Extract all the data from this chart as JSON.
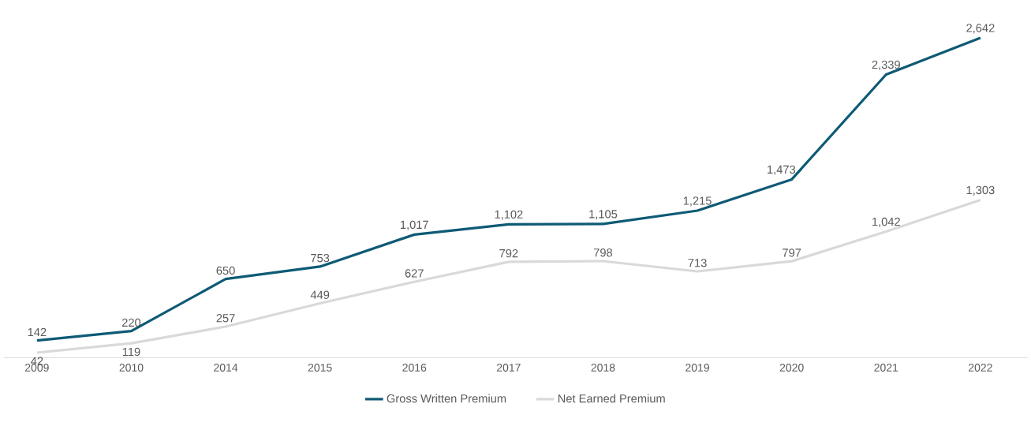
{
  "chart_data": {
    "type": "line",
    "categories": [
      "2009",
      "2010",
      "2014",
      "2015",
      "2016",
      "2017",
      "2018",
      "2019",
      "2020",
      "2021",
      "2022"
    ],
    "series": [
      {
        "name": "Gross Written Premium",
        "color": "#0e5a75",
        "values": [
          142,
          220,
          650,
          753,
          1017,
          1102,
          1105,
          1215,
          1473,
          2339,
          2642
        ],
        "value_labels": [
          "142",
          "220",
          "650",
          "753",
          "1,017",
          "1,102",
          "1,105",
          "1,215",
          "1,473",
          "2,339",
          "2,642"
        ]
      },
      {
        "name": "Net Earned Premium",
        "color": "#d9d9d9",
        "values": [
          42,
          119,
          257,
          449,
          627,
          792,
          798,
          713,
          797,
          1042,
          1303
        ],
        "value_labels": [
          "42",
          "119",
          "257",
          "449",
          "627",
          "792",
          "798",
          "713",
          "797",
          "1,042",
          "1,303"
        ]
      }
    ],
    "legend": "bottom",
    "marker": "none",
    "line_style": "solid",
    "grid": false
  }
}
